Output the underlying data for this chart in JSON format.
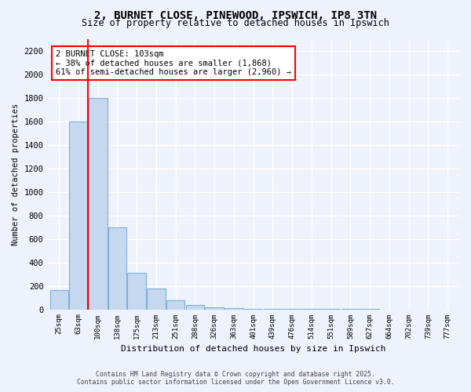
{
  "title_line1": "2, BURNET CLOSE, PINEWOOD, IPSWICH, IP8 3TN",
  "title_line2": "Size of property relative to detached houses in Ipswich",
  "xlabel": "Distribution of detached houses by size in Ipswich",
  "ylabel": "Number of detached properties",
  "categories": [
    "25sqm",
    "63sqm",
    "100sqm",
    "138sqm",
    "175sqm",
    "213sqm",
    "251sqm",
    "288sqm",
    "326sqm",
    "363sqm",
    "401sqm",
    "439sqm",
    "476sqm",
    "514sqm",
    "551sqm",
    "589sqm",
    "627sqm",
    "664sqm",
    "702sqm",
    "739sqm",
    "777sqm"
  ],
  "values": [
    165,
    1600,
    1800,
    700,
    310,
    175,
    75,
    40,
    20,
    10,
    6,
    4,
    3,
    2,
    1,
    1,
    1,
    0,
    0,
    0,
    0
  ],
  "bar_color": "#c5d8f0",
  "bar_edge_color": "#7fb0d8",
  "red_line_index": 1.5,
  "annotation_text": "2 BURNET CLOSE: 103sqm\n← 38% of detached houses are smaller (1,868)\n61% of semi-detached houses are larger (2,960) →",
  "ylim": [
    0,
    2300
  ],
  "yticks": [
    0,
    200,
    400,
    600,
    800,
    1000,
    1200,
    1400,
    1600,
    1800,
    2000,
    2200
  ],
  "background_color": "#eef2fb",
  "grid_color": "#ffffff",
  "footer_line1": "Contains HM Land Registry data © Crown copyright and database right 2025.",
  "footer_line2": "Contains public sector information licensed under the Open Government Licence v3.0."
}
